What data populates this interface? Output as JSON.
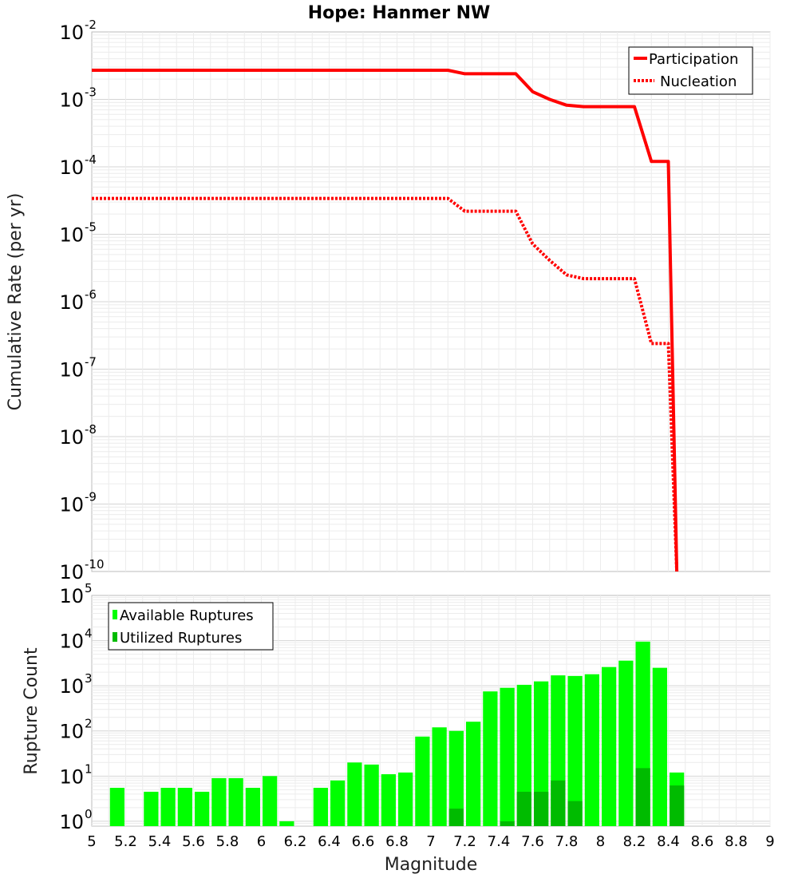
{
  "chart_data": [
    {
      "type": "line",
      "title": "Hope: Hanmer NW",
      "xlabel": "",
      "ylabel": "Cumulative Rate (per yr)",
      "xlim": [
        5,
        9
      ],
      "ylim": [
        1e-10,
        0.01
      ],
      "yscale": "log",
      "y_tick_labels": [
        {
          "value": 0.01,
          "base": "10",
          "exp": "-2"
        },
        {
          "value": 0.001,
          "base": "10",
          "exp": "-3"
        },
        {
          "value": 0.0001,
          "base": "10",
          "exp": "-4"
        },
        {
          "value": 1e-05,
          "base": "10",
          "exp": "-5"
        },
        {
          "value": 1e-06,
          "base": "10",
          "exp": "-6"
        },
        {
          "value": 1e-07,
          "base": "10",
          "exp": "-7"
        },
        {
          "value": 1e-08,
          "base": "10",
          "exp": "-8"
        },
        {
          "value": 1e-09,
          "base": "10",
          "exp": "-9"
        },
        {
          "value": 1e-10,
          "base": "10",
          "exp": "-10"
        }
      ],
      "grid": true,
      "legend_position": "top-right",
      "series": [
        {
          "name": "Participation",
          "color": "#ff0000",
          "style": "solid",
          "x": [
            5.0,
            7.1,
            7.2,
            7.3,
            7.4,
            7.5,
            7.6,
            7.7,
            7.8,
            7.9,
            8.0,
            8.1,
            8.2,
            8.3,
            8.4,
            8.45
          ],
          "y": [
            0.0027,
            0.0027,
            0.0024,
            0.0024,
            0.0024,
            0.0024,
            0.0013,
            0.001,
            0.00082,
            0.00078,
            0.00078,
            0.00078,
            0.00078,
            0.00012,
            0.00012,
            1e-10
          ]
        },
        {
          "name": "Nucleation",
          "color": "#ff0000",
          "style": "dotted",
          "x": [
            5.0,
            7.1,
            7.2,
            7.3,
            7.4,
            7.5,
            7.6,
            7.7,
            7.8,
            7.9,
            8.0,
            8.1,
            8.2,
            8.3,
            8.4,
            8.45
          ],
          "y": [
            3.4e-05,
            3.4e-05,
            2.2e-05,
            2.2e-05,
            2.2e-05,
            2.2e-05,
            7.2e-06,
            4.1e-06,
            2.5e-06,
            2.2e-06,
            2.2e-06,
            2.2e-06,
            2.2e-06,
            2.4e-07,
            2.4e-07,
            1e-10
          ]
        }
      ]
    },
    {
      "type": "bar",
      "xlabel": "Magnitude",
      "ylabel": "Rupture Count",
      "xlim": [
        5,
        9
      ],
      "ylim": [
        0.78,
        100000
      ],
      "yscale": "log",
      "y_tick_labels": [
        {
          "value": 1,
          "base": "10",
          "exp": "0"
        },
        {
          "value": 10,
          "base": "10",
          "exp": "1"
        },
        {
          "value": 100,
          "base": "10",
          "exp": "2"
        },
        {
          "value": 1000,
          "base": "10",
          "exp": "3"
        },
        {
          "value": 10000,
          "base": "10",
          "exp": "4"
        },
        {
          "value": 100000,
          "base": "10",
          "exp": "5"
        }
      ],
      "x_tick_labels": [
        "5",
        "5.2",
        "5.4",
        "5.6",
        "5.8",
        "6",
        "6.2",
        "6.4",
        "6.6",
        "6.8",
        "7",
        "7.2",
        "7.4",
        "7.6",
        "7.8",
        "8",
        "8.2",
        "8.4",
        "8.6",
        "8.8",
        "9"
      ],
      "grid": true,
      "legend_position": "top-left",
      "bin_width": 0.1,
      "series": [
        {
          "name": "Available Ruptures",
          "color": "#00ff00",
          "x": [
            5.15,
            5.35,
            5.45,
            5.55,
            5.65,
            5.75,
            5.85,
            5.95,
            6.05,
            6.15,
            6.35,
            6.45,
            6.55,
            6.65,
            6.75,
            6.85,
            6.95,
            7.05,
            7.15,
            7.25,
            7.35,
            7.45,
            7.55,
            7.65,
            7.75,
            7.85,
            7.95,
            8.05,
            8.15,
            8.25,
            8.35,
            8.45
          ],
          "y": [
            5.5,
            4.5,
            5.5,
            5.5,
            4.5,
            9,
            9,
            5.5,
            10,
            1,
            5.5,
            8,
            20,
            18,
            11,
            12,
            75,
            120,
            100,
            160,
            750,
            900,
            1050,
            1250,
            1700,
            1650,
            1800,
            2600,
            3600,
            9500,
            2500,
            12
          ]
        },
        {
          "name": "Utilized Ruptures",
          "color": "#00bb00",
          "x": [
            7.15,
            7.45,
            7.55,
            7.65,
            7.75,
            7.85,
            8.25,
            8.45
          ],
          "y": [
            1.9,
            1,
            4.5,
            4.5,
            8,
            2.8,
            15,
            6.2
          ]
        }
      ]
    }
  ]
}
